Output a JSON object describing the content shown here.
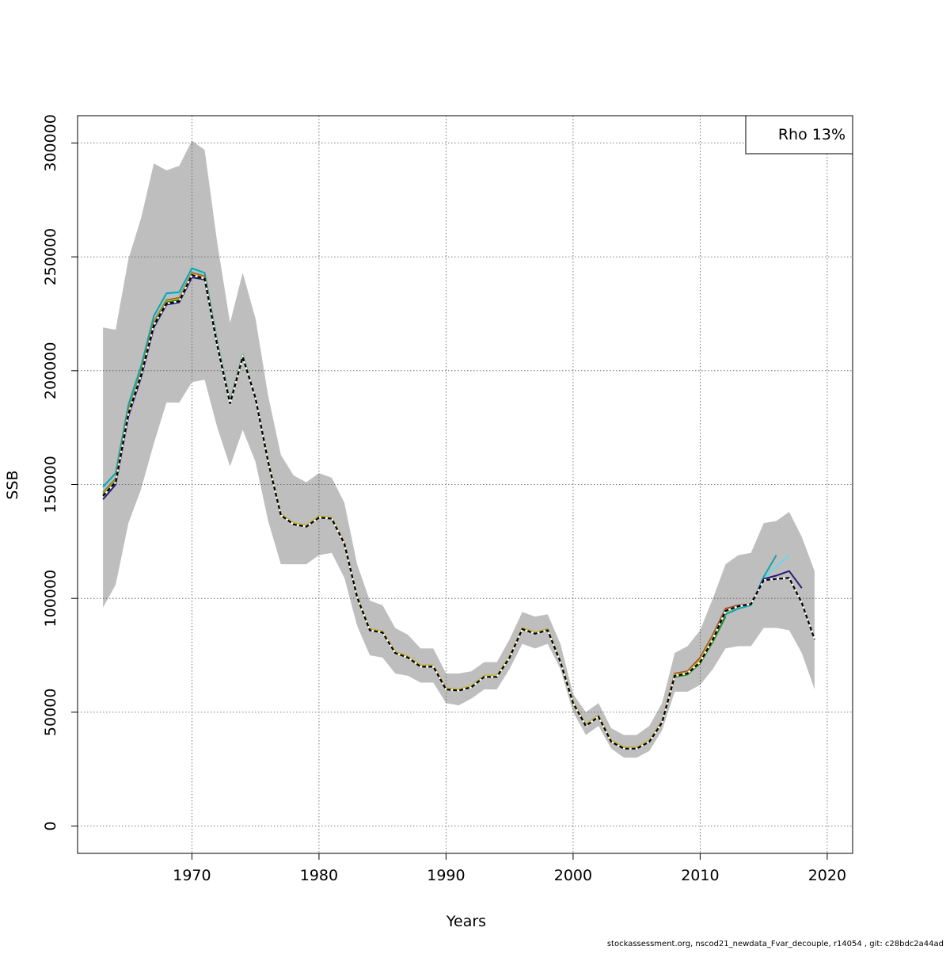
{
  "chart_data": {
    "type": "line",
    "ylabel": "SSB",
    "xlabel": "Years",
    "legend_text": "Rho 13%",
    "legend_position": "top-right",
    "grid": true,
    "xlim": [
      1961,
      2022
    ],
    "ylim": [
      -12000,
      312000
    ],
    "x_ticks": [
      1970,
      1980,
      1990,
      2000,
      2010,
      2020
    ],
    "y_ticks": [
      0,
      50000,
      100000,
      150000,
      200000,
      250000,
      300000
    ],
    "band": {
      "color": "#bebebe",
      "x": [
        1963,
        1964,
        1965,
        1966,
        1967,
        1968,
        1969,
        1970,
        1971,
        1972,
        1973,
        1974,
        1975,
        1976,
        1977,
        1978,
        1979,
        1980,
        1981,
        1982,
        1983,
        1984,
        1985,
        1986,
        1987,
        1988,
        1989,
        1990,
        1991,
        1992,
        1993,
        1994,
        1995,
        1996,
        1997,
        1998,
        1999,
        2000,
        2001,
        2002,
        2003,
        2004,
        2005,
        2006,
        2007,
        2008,
        2009,
        2010,
        2011,
        2012,
        2013,
        2014,
        2015,
        2016,
        2017,
        2018,
        2019
      ],
      "upper": [
        219000,
        218000,
        249000,
        267000,
        291000,
        288000,
        290000,
        301000,
        297000,
        256000,
        221000,
        243000,
        223000,
        189000,
        163000,
        154000,
        151000,
        155000,
        153000,
        142000,
        115000,
        99000,
        97000,
        87000,
        84000,
        78000,
        78000,
        67000,
        67000,
        68000,
        72000,
        72000,
        82000,
        94000,
        92000,
        93000,
        80000,
        58000,
        50000,
        54000,
        43000,
        40000,
        40000,
        44000,
        54000,
        76000,
        79000,
        86000,
        100000,
        115000,
        119000,
        120000,
        133000,
        134000,
        138000,
        127000,
        112000
      ],
      "lower": [
        96000,
        106000,
        133000,
        148000,
        168000,
        186000,
        186000,
        195000,
        196000,
        175000,
        158000,
        174000,
        160000,
        134000,
        115000,
        115000,
        115000,
        119000,
        120000,
        109000,
        88000,
        75000,
        74000,
        67000,
        66000,
        63000,
        63000,
        54000,
        53000,
        56000,
        60000,
        60000,
        69000,
        80000,
        78000,
        80000,
        69000,
        50000,
        40000,
        44000,
        34000,
        30000,
        30000,
        33000,
        42000,
        59000,
        59000,
        62000,
        69000,
        78000,
        79000,
        79000,
        87000,
        87000,
        86000,
        76000,
        60000
      ]
    },
    "series": [
      {
        "color": "#66d9e8",
        "dash": false,
        "x": [
          1963,
          1964,
          1965,
          1966,
          1967,
          1968,
          1969,
          1970,
          1971,
          1972,
          1973,
          1974,
          1975,
          1976,
          1977,
          1978,
          1979,
          1980,
          1981,
          1982,
          1983,
          1984,
          1985,
          1986,
          1987,
          1988,
          1989,
          1990,
          1991,
          1992,
          1993,
          1994,
          1995,
          1996,
          1997,
          1998,
          1999,
          2000,
          2001,
          2002,
          2003,
          2004,
          2005,
          2006,
          2007,
          2008,
          2009,
          2010,
          2011,
          2012,
          2013,
          2014,
          2015,
          2016,
          2017
        ],
        "values": [
          148500,
          154500,
          184500,
          201500,
          223500,
          233500,
          234000,
          244500,
          242500,
          212000,
          186000,
          206500,
          188000,
          160000,
          136500,
          132500,
          131500,
          135500,
          135000,
          124000,
          100500,
          86000,
          85000,
          76000,
          74000,
          70000,
          70000,
          60000,
          59500,
          61000,
          65500,
          65500,
          74000,
          86500,
          84500,
          86000,
          72000,
          54000,
          44000,
          48000,
          37000,
          34000,
          34000,
          37000,
          45500,
          66000,
          67000,
          72500,
          82000,
          93500,
          96000,
          97000,
          109000,
          114000,
          119000
        ]
      },
      {
        "color": "#17a2a8",
        "dash": false,
        "x": [
          1963,
          1964,
          1965,
          1966,
          1967,
          1968,
          1969,
          1970,
          1971,
          1972,
          1973,
          1974,
          1975,
          1976,
          1977,
          1978,
          1979,
          1980,
          1981,
          1982,
          1983,
          1984,
          1985,
          1986,
          1987,
          1988,
          1989,
          1990,
          1991,
          1992,
          1993,
          1994,
          1995,
          1996,
          1997,
          1998,
          1999,
          2000,
          2001,
          2002,
          2003,
          2004,
          2005,
          2006,
          2007,
          2008,
          2009,
          2010,
          2011,
          2012,
          2013,
          2014,
          2015,
          2016
        ],
        "values": [
          149000,
          155000,
          185000,
          202000,
          224000,
          234000,
          234500,
          245000,
          243000,
          212500,
          186500,
          207000,
          188000,
          160000,
          136500,
          132500,
          131500,
          135500,
          135000,
          124000,
          100500,
          86000,
          85000,
          76000,
          74000,
          70000,
          70000,
          60000,
          59500,
          61000,
          65500,
          65500,
          74000,
          86500,
          84500,
          86000,
          72000,
          54000,
          44000,
          48000,
          37000,
          34000,
          34000,
          37000,
          45500,
          66000,
          67000,
          72500,
          82000,
          93000,
          95500,
          97000,
          109500,
          119000
        ]
      },
      {
        "color": "#2a1a7a",
        "dash": false,
        "x": [
          1963,
          1964,
          1965,
          1966,
          1967,
          1968,
          1969,
          1970,
          1971,
          1972,
          1973,
          1974,
          1975,
          1976,
          1977,
          1978,
          1979,
          1980,
          1981,
          1982,
          1983,
          1984,
          1985,
          1986,
          1987,
          1988,
          1989,
          1990,
          1991,
          1992,
          1993,
          1994,
          1995,
          1996,
          1997,
          1998,
          1999,
          2000,
          2001,
          2002,
          2003,
          2004,
          2005,
          2006,
          2007,
          2008,
          2009,
          2010,
          2011,
          2012,
          2013,
          2014,
          2015,
          2016,
          2017,
          2018
        ],
        "values": [
          143500,
          150000,
          180000,
          197000,
          219000,
          229000,
          230000,
          241000,
          240000,
          211000,
          186000,
          206000,
          188000,
          160000,
          136500,
          132500,
          131500,
          135500,
          135000,
          124000,
          100500,
          86000,
          85000,
          76000,
          74000,
          70000,
          70000,
          60000,
          59500,
          61000,
          65500,
          65500,
          74000,
          86500,
          84500,
          86000,
          72000,
          54000,
          44000,
          48000,
          37000,
          34000,
          34000,
          37000,
          45500,
          66000,
          67000,
          72500,
          82000,
          94500,
          96500,
          97500,
          108500,
          110000,
          112000,
          104500
        ]
      },
      {
        "color": "#a0522d",
        "dash": false,
        "x": [
          1963,
          1964,
          1965,
          1966,
          1967,
          1968,
          1969,
          1970,
          1971,
          1972,
          1973,
          1974,
          1975,
          1976,
          1977,
          1978,
          1979,
          1980,
          1981,
          1982,
          1983,
          1984,
          1985,
          1986,
          1987,
          1988,
          1989,
          1990,
          1991,
          1992,
          1993,
          1994,
          1995,
          1996,
          1997,
          1998,
          1999,
          2000,
          2001,
          2002,
          2003,
          2004,
          2005,
          2006,
          2007,
          2008,
          2009,
          2010,
          2011,
          2012,
          2013,
          2014
        ],
        "values": [
          146500,
          152500,
          182500,
          199500,
          221500,
          231000,
          232000,
          243000,
          241500,
          211500,
          186000,
          206500,
          188000,
          160500,
          137000,
          133000,
          132000,
          136000,
          135500,
          124500,
          101000,
          86500,
          85500,
          76500,
          74500,
          70500,
          70500,
          60500,
          60000,
          61500,
          66000,
          66000,
          74500,
          87000,
          85000,
          86500,
          72500,
          54500,
          44500,
          48500,
          37500,
          34500,
          34500,
          37500,
          46000,
          67000,
          68000,
          74000,
          84000,
          95500,
          97000,
          97500
        ]
      },
      {
        "color": "#c8b820",
        "dash": false,
        "x": [
          1963,
          1964,
          1965,
          1966,
          1967,
          1968,
          1969,
          1970,
          1971,
          1972,
          1973,
          1974,
          1975,
          1976,
          1977,
          1978,
          1979,
          1980,
          1981,
          1982,
          1983,
          1984,
          1985,
          1986,
          1987,
          1988,
          1989,
          1990,
          1991,
          1992,
          1993,
          1994,
          1995,
          1996,
          1997,
          1998,
          1999,
          2000,
          2001,
          2002,
          2003,
          2004,
          2005,
          2006,
          2007,
          2008,
          2009,
          2010,
          2011,
          2012,
          2013
        ],
        "values": [
          146000,
          152000,
          182000,
          199000,
          221000,
          230500,
          231500,
          242500,
          241000,
          211500,
          186000,
          206500,
          188000,
          160500,
          137000,
          133000,
          132000,
          136000,
          135500,
          124500,
          101000,
          86500,
          85500,
          76500,
          74500,
          70500,
          70500,
          60500,
          60000,
          61500,
          66000,
          66000,
          74500,
          87000,
          85000,
          86500,
          72500,
          54500,
          44500,
          48500,
          37500,
          34500,
          34500,
          37500,
          46000,
          66500,
          67500,
          73000,
          83000,
          94000,
          96500
        ]
      },
      {
        "color": "#228b22",
        "dash": false,
        "x": [
          1963,
          1964,
          1965,
          1966,
          1967,
          1968,
          1969,
          1970,
          1971,
          1972,
          1973,
          1974,
          1975,
          1976,
          1977,
          1978,
          1979,
          1980,
          1981,
          1982,
          1983,
          1984,
          1985,
          1986,
          1987,
          1988,
          1989,
          1990,
          1991,
          1992,
          1993,
          1994,
          1995,
          1996,
          1997,
          1998,
          1999,
          2000,
          2001,
          2002,
          2003,
          2004,
          2005,
          2006,
          2007,
          2008,
          2009,
          2010,
          2011,
          2012
        ],
        "values": [
          145500,
          151500,
          181500,
          198500,
          220500,
          230000,
          231000,
          242000,
          240500,
          211000,
          186000,
          206000,
          188000,
          160000,
          136500,
          132500,
          131500,
          135500,
          135000,
          124000,
          100500,
          86000,
          85000,
          76000,
          74000,
          70000,
          70000,
          60000,
          59500,
          61000,
          65500,
          65500,
          74000,
          86500,
          84500,
          86000,
          72000,
          54000,
          44000,
          48000,
          37000,
          34000,
          34000,
          37000,
          45500,
          65500,
          66500,
          71500,
          81000,
          92000
        ]
      },
      {
        "color": "#000000",
        "dash": true,
        "x": [
          1963,
          1964,
          1965,
          1966,
          1967,
          1968,
          1969,
          1970,
          1971,
          1972,
          1973,
          1974,
          1975,
          1976,
          1977,
          1978,
          1979,
          1980,
          1981,
          1982,
          1983,
          1984,
          1985,
          1986,
          1987,
          1988,
          1989,
          1990,
          1991,
          1992,
          1993,
          1994,
          1995,
          1996,
          1997,
          1998,
          1999,
          2000,
          2001,
          2002,
          2003,
          2004,
          2005,
          2006,
          2007,
          2008,
          2009,
          2010,
          2011,
          2012,
          2013,
          2014,
          2015,
          2016,
          2017,
          2018,
          2019
        ],
        "values": [
          145000,
          151000,
          181000,
          198000,
          220000,
          229500,
          230500,
          242000,
          240500,
          211000,
          185500,
          206000,
          188000,
          160000,
          136500,
          132500,
          131500,
          135500,
          135000,
          124000,
          100500,
          86000,
          85000,
          76000,
          74000,
          70000,
          70000,
          60000,
          59500,
          61000,
          65500,
          65500,
          74000,
          86500,
          84500,
          86000,
          72000,
          54000,
          44000,
          48000,
          37000,
          34000,
          34000,
          37000,
          45500,
          66000,
          67000,
          72000,
          82000,
          94500,
          96500,
          97500,
          108000,
          108500,
          109000,
          98000,
          82000
        ]
      }
    ]
  },
  "footer": "stockassessment.org, nscod21_newdata_Fvar_decouple, r14054 , git: c28bdc2a44ad"
}
